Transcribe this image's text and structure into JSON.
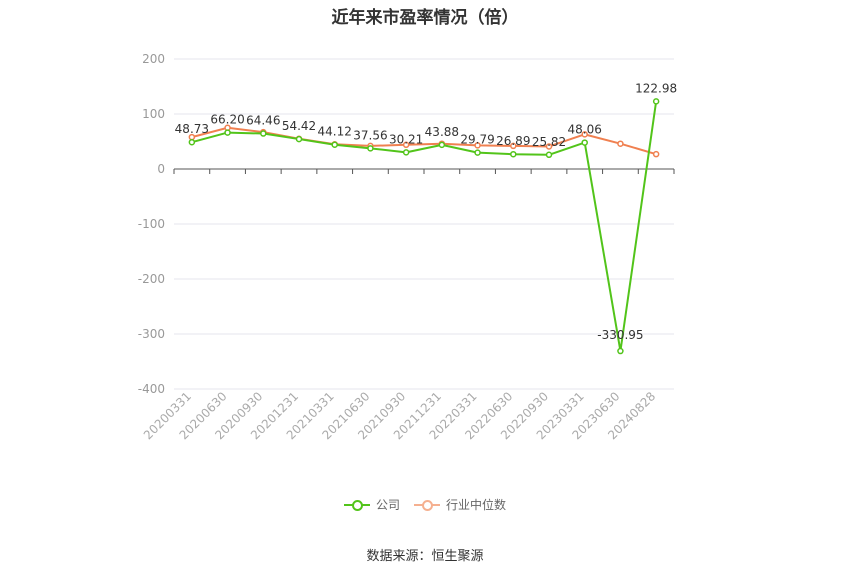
{
  "chart_data": {
    "type": "line",
    "title": "近年来市盈率情况（倍）",
    "categories": [
      "20200331",
      "20200630",
      "20200930",
      "20201231",
      "20210331",
      "20210630",
      "20210930",
      "20211231",
      "20220331",
      "20220630",
      "20220930",
      "20230331",
      "20230630",
      "20240828"
    ],
    "ylim": [
      -400,
      200
    ],
    "yticks": [
      200,
      100,
      0,
      -100,
      -200,
      -300,
      -400
    ],
    "grid": true,
    "legend_position": "bottom",
    "series": [
      {
        "name": "公司",
        "color": "#52c41a",
        "values": [
          48.73,
          66.2,
          64.46,
          54.42,
          44.12,
          37.56,
          30.21,
          43.88,
          29.79,
          26.89,
          25.82,
          48.06,
          -330.95,
          122.98
        ],
        "labels": [
          "48.73",
          "66.20",
          "64.46",
          "54.42",
          "44.12",
          "37.56",
          "30.21",
          "43.88",
          "29.79",
          "26.89",
          "25.82",
          "48.06",
          "-330.95",
          "122.98"
        ]
      },
      {
        "name": "行业中位数",
        "color": "#f08050",
        "values": [
          58,
          75,
          67,
          55,
          45,
          42,
          44,
          46,
          43,
          42,
          41,
          63,
          46,
          27
        ]
      }
    ]
  },
  "source": "数据来源：恒生聚源"
}
